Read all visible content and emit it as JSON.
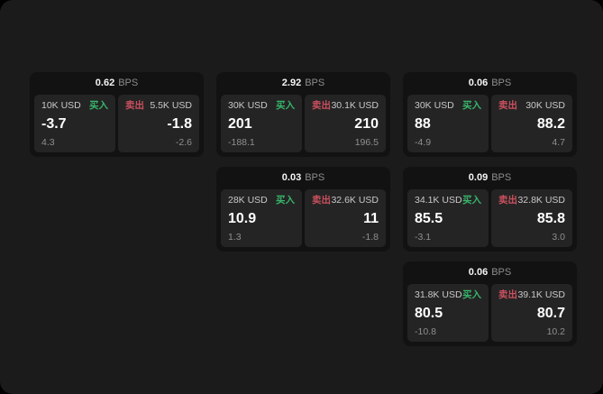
{
  "page": {
    "bps_unit": "BPS",
    "buy_label": "买入",
    "sell_label": "卖出",
    "colors": {
      "buy": "#37b56a",
      "sell": "#c9505e",
      "page_background": "#1b1b1b",
      "card_background": "#121212",
      "panel_background": "#242424"
    }
  },
  "cards": [
    {
      "bps": "0.62",
      "col": 1,
      "row": 1,
      "buy": {
        "amount": "10K USD",
        "price": "-3.7",
        "delta": "4.3"
      },
      "sell": {
        "amount": "5.5K USD",
        "price": "-1.8",
        "delta": "-2.6"
      }
    },
    {
      "bps": "2.92",
      "col": 2,
      "row": 1,
      "buy": {
        "amount": "30K USD",
        "price": "201",
        "delta": "-188.1"
      },
      "sell": {
        "amount": "30.1K USD",
        "price": "210",
        "delta": "196.5"
      }
    },
    {
      "bps": "0.06",
      "col": 3,
      "row": 1,
      "buy": {
        "amount": "30K USD",
        "price": "88",
        "delta": "-4.9"
      },
      "sell": {
        "amount": "30K USD",
        "price": "88.2",
        "delta": "4.7"
      }
    },
    {
      "bps": "0.03",
      "col": 2,
      "row": 2,
      "buy": {
        "amount": "28K USD",
        "price": "10.9",
        "delta": "1.3"
      },
      "sell": {
        "amount": "32.6K USD",
        "price": "11",
        "delta": "-1.8"
      }
    },
    {
      "bps": "0.09",
      "col": 3,
      "row": 2,
      "buy": {
        "amount": "34.1K USD",
        "price": "85.5",
        "delta": "-3.1"
      },
      "sell": {
        "amount": "32.8K USD",
        "price": "85.8",
        "delta": "3.0"
      }
    },
    {
      "bps": "0.06",
      "col": 3,
      "row": 3,
      "buy": {
        "amount": "31.8K USD",
        "price": "80.5",
        "delta": "-10.8"
      },
      "sell": {
        "amount": "39.1K USD",
        "price": "80.7",
        "delta": "10.2"
      }
    }
  ]
}
